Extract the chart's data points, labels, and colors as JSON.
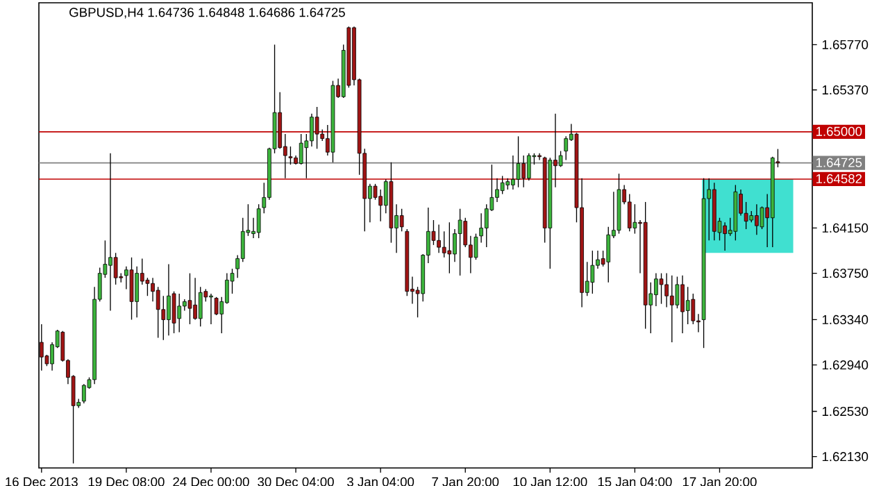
{
  "chart_data": {
    "type": "candlestick",
    "title": "GBPUSD,H4 1.64736 1.64848 1.64686 1.64725",
    "categories": [
      "16 Dec 2013",
      null,
      null,
      null,
      null,
      null,
      null,
      null,
      null,
      null,
      null,
      null,
      null,
      null,
      null,
      null,
      "19 Dec 08:00",
      null,
      null,
      null,
      null,
      null,
      null,
      null,
      null,
      null,
      null,
      null,
      null,
      null,
      null,
      null,
      "24 Dec 00:00",
      null,
      null,
      null,
      null,
      null,
      null,
      null,
      null,
      null,
      null,
      null,
      null,
      null,
      null,
      null,
      "30 Dec 04:00",
      null,
      null,
      null,
      null,
      null,
      null,
      null,
      null,
      null,
      null,
      null,
      null,
      null,
      null,
      null,
      "3 Jan 04:00",
      null,
      null,
      null,
      null,
      null,
      null,
      null,
      null,
      null,
      null,
      null,
      null,
      null,
      null,
      null,
      "7 Jan 20:00",
      null,
      null,
      null,
      null,
      null,
      null,
      null,
      null,
      null,
      null,
      null,
      null,
      null,
      null,
      null,
      "10 Jan 12:00",
      null,
      null,
      null,
      null,
      null,
      null,
      null,
      null,
      null,
      null,
      null,
      null,
      null,
      null,
      null,
      "15 Jan 04:00",
      null,
      null,
      null,
      null,
      null,
      null,
      null,
      null,
      null,
      null,
      null,
      null,
      null,
      null,
      null,
      "17 Jan 20:00",
      null,
      null,
      null,
      null,
      null,
      null,
      null,
      null,
      null,
      null,
      null,
      null,
      null,
      null,
      null,
      null,
      null
    ],
    "ohlc": [
      [
        1.6314,
        1.633,
        1.6289,
        1.6301
      ],
      [
        1.6302,
        1.6303,
        1.6293,
        1.6295
      ],
      [
        1.6295,
        1.6314,
        1.6289,
        1.6312
      ],
      [
        1.631,
        1.6325,
        1.6309,
        1.6324
      ],
      [
        1.6323,
        1.6324,
        1.6297,
        1.6298
      ],
      [
        1.6298,
        1.6299,
        1.6277,
        1.6283
      ],
      [
        1.6284,
        1.6285,
        1.6207,
        1.6258
      ],
      [
        1.6258,
        1.6264,
        1.6256,
        1.6261
      ],
      [
        1.6262,
        1.6277,
        1.626,
        1.6276
      ],
      [
        1.6274,
        1.6283,
        1.6273,
        1.6281
      ],
      [
        1.6281,
        1.6363,
        1.6277,
        1.6352
      ],
      [
        1.6352,
        1.638,
        1.635,
        1.6375
      ],
      [
        1.6374,
        1.6404,
        1.6371,
        1.6383
      ],
      [
        1.6382,
        1.6481,
        1.6342,
        1.6389
      ],
      [
        1.6389,
        1.6393,
        1.6365,
        1.6371
      ],
      [
        1.6372,
        1.6375,
        1.6367,
        1.6371
      ],
      [
        1.6373,
        1.6381,
        1.6361,
        1.6378
      ],
      [
        1.6378,
        1.6389,
        1.6334,
        1.635
      ],
      [
        1.635,
        1.6381,
        1.6336,
        1.6375
      ],
      [
        1.6375,
        1.6388,
        1.6365,
        1.6368
      ],
      [
        1.6369,
        1.6371,
        1.6355,
        1.6366
      ],
      [
        1.6366,
        1.6371,
        1.635,
        1.6359
      ],
      [
        1.636,
        1.6363,
        1.6318,
        1.6343
      ],
      [
        1.6343,
        1.6355,
        1.6316,
        1.6334
      ],
      [
        1.6334,
        1.6383,
        1.632,
        1.6355
      ],
      [
        1.6357,
        1.6359,
        1.6322,
        1.6331
      ],
      [
        1.6335,
        1.6357,
        1.6323,
        1.6346
      ],
      [
        1.6346,
        1.6352,
        1.6342,
        1.635
      ],
      [
        1.6351,
        1.6375,
        1.633,
        1.6344
      ],
      [
        1.6347,
        1.6371,
        1.6334,
        1.6335
      ],
      [
        1.6335,
        1.6363,
        1.6328,
        1.6358
      ],
      [
        1.6359,
        1.6361,
        1.635,
        1.6354
      ],
      [
        1.6354,
        1.6357,
        1.633,
        1.6355
      ],
      [
        1.6353,
        1.6354,
        1.6338,
        1.6339
      ],
      [
        1.6339,
        1.6354,
        1.6322,
        1.635
      ],
      [
        1.6349,
        1.6375,
        1.6348,
        1.6369
      ],
      [
        1.6368,
        1.6379,
        1.6357,
        1.6375
      ],
      [
        1.6379,
        1.6391,
        1.6371,
        1.6388
      ],
      [
        1.6388,
        1.6424,
        1.6385,
        1.6412
      ],
      [
        1.6411,
        1.6436,
        1.6408,
        1.6413
      ],
      [
        1.641,
        1.6424,
        1.6406,
        1.6412
      ],
      [
        1.6411,
        1.6436,
        1.6406,
        1.6432
      ],
      [
        1.6433,
        1.6455,
        1.6428,
        1.6442
      ],
      [
        1.6442,
        1.6486,
        1.644,
        1.6485
      ],
      [
        1.6485,
        1.6577,
        1.6481,
        1.6517
      ],
      [
        1.6517,
        1.6535,
        1.6485,
        1.6486
      ],
      [
        1.6487,
        1.6498,
        1.6459,
        1.6479
      ],
      [
        1.6478,
        1.6487,
        1.6471,
        1.6477
      ],
      [
        1.6477,
        1.6479,
        1.6471,
        1.6472
      ],
      [
        1.6472,
        1.6498,
        1.6471,
        1.649
      ],
      [
        1.6486,
        1.6498,
        1.6459,
        1.6492
      ],
      [
        1.6492,
        1.6516,
        1.6487,
        1.6513
      ],
      [
        1.6513,
        1.6522,
        1.6485,
        1.6498
      ],
      [
        1.6498,
        1.6502,
        1.6492,
        1.6494
      ],
      [
        1.6494,
        1.6506,
        1.6479,
        1.6482
      ],
      [
        1.6482,
        1.6545,
        1.6473,
        1.6541
      ],
      [
        1.6541,
        1.6547,
        1.653,
        1.6531
      ],
      [
        1.6531,
        1.6577,
        1.653,
        1.6572
      ],
      [
        1.6592,
        1.6593,
        1.6539,
        1.6541
      ],
      [
        1.6592,
        1.6593,
        1.6541,
        1.6546
      ],
      [
        1.6546,
        1.6547,
        1.6462,
        1.6481
      ],
      [
        1.6481,
        1.6485,
        1.6412,
        1.6441
      ],
      [
        1.6441,
        1.6454,
        1.642,
        1.6452
      ],
      [
        1.6452,
        1.6454,
        1.644,
        1.6442
      ],
      [
        1.6443,
        1.6449,
        1.6421,
        1.6435
      ],
      [
        1.6435,
        1.6458,
        1.6428,
        1.6456
      ],
      [
        1.6456,
        1.6473,
        1.6402,
        1.6415
      ],
      [
        1.6415,
        1.6436,
        1.6393,
        1.6426
      ],
      [
        1.6426,
        1.6432,
        1.6412,
        1.6416
      ],
      [
        1.6412,
        1.6414,
        1.6355,
        1.6359
      ],
      [
        1.6361,
        1.6372,
        1.6348,
        1.6359
      ],
      [
        1.636,
        1.6363,
        1.6336,
        1.6357
      ],
      [
        1.6357,
        1.6392,
        1.635,
        1.6391
      ],
      [
        1.6391,
        1.6433,
        1.6384,
        1.6412
      ],
      [
        1.6412,
        1.6422,
        1.64,
        1.6404
      ],
      [
        1.6404,
        1.6418,
        1.6393,
        1.6398
      ],
      [
        1.6398,
        1.6412,
        1.6389,
        1.6393
      ],
      [
        1.6395,
        1.642,
        1.6375,
        1.6392
      ],
      [
        1.6392,
        1.6414,
        1.6385,
        1.641
      ],
      [
        1.641,
        1.6432,
        1.6373,
        1.6422
      ],
      [
        1.6421,
        1.6424,
        1.6398,
        1.64
      ],
      [
        1.64,
        1.6408,
        1.6375,
        1.6389
      ],
      [
        1.6389,
        1.641,
        1.6387,
        1.6407
      ],
      [
        1.6408,
        1.6428,
        1.6402,
        1.6415
      ],
      [
        1.6415,
        1.6436,
        1.6398,
        1.6432
      ],
      [
        1.6431,
        1.6471,
        1.643,
        1.6442
      ],
      [
        1.6442,
        1.6459,
        1.6438,
        1.6449
      ],
      [
        1.6448,
        1.6461,
        1.6445,
        1.6455
      ],
      [
        1.6453,
        1.6459,
        1.6449,
        1.6456
      ],
      [
        1.6453,
        1.6479,
        1.6449,
        1.6458
      ],
      [
        1.6458,
        1.6496,
        1.6451,
        1.6472
      ],
      [
        1.6472,
        1.6479,
        1.6451,
        1.6459
      ],
      [
        1.6459,
        1.6481,
        1.6457,
        1.6479
      ],
      [
        1.6478,
        1.6481,
        1.6471,
        1.6479
      ],
      [
        1.6479,
        1.6481,
        1.6475,
        1.6478
      ],
      [
        1.6477,
        1.6478,
        1.6402,
        1.6415
      ],
      [
        1.6415,
        1.6477,
        1.6379,
        1.6475
      ],
      [
        1.6475,
        1.6516,
        1.6451,
        1.647
      ],
      [
        1.647,
        1.6483,
        1.6469,
        1.6479
      ],
      [
        1.6483,
        1.6496,
        1.6475,
        1.6494
      ],
      [
        1.6493,
        1.6507,
        1.6492,
        1.6498
      ],
      [
        1.6498,
        1.6499,
        1.642,
        1.6433
      ],
      [
        1.6433,
        1.6459,
        1.6345,
        1.6358
      ],
      [
        1.6358,
        1.6385,
        1.6355,
        1.6368
      ],
      [
        1.6367,
        1.6395,
        1.6357,
        1.6382
      ],
      [
        1.6382,
        1.6395,
        1.6379,
        1.6387
      ],
      [
        1.6388,
        1.6395,
        1.6381,
        1.6383
      ],
      [
        1.6385,
        1.6416,
        1.6367,
        1.6409
      ],
      [
        1.6408,
        1.6447,
        1.6406,
        1.6413
      ],
      [
        1.6413,
        1.6463,
        1.641,
        1.6449
      ],
      [
        1.6449,
        1.6453,
        1.6436,
        1.6438
      ],
      [
        1.6438,
        1.6445,
        1.6412,
        1.6415
      ],
      [
        1.6415,
        1.6436,
        1.641,
        1.642
      ],
      [
        1.642,
        1.6422,
        1.6375,
        1.6419
      ],
      [
        1.642,
        1.6438,
        1.6326,
        1.6347
      ],
      [
        1.6347,
        1.6367,
        1.6322,
        1.6357
      ],
      [
        1.6356,
        1.6375,
        1.6346,
        1.637
      ],
      [
        1.637,
        1.6375,
        1.6348,
        1.6365
      ],
      [
        1.6365,
        1.6375,
        1.6345,
        1.6355
      ],
      [
        1.6355,
        1.6373,
        1.6314,
        1.6347
      ],
      [
        1.6347,
        1.6372,
        1.6344,
        1.6365
      ],
      [
        1.6365,
        1.6373,
        1.6322,
        1.6341
      ],
      [
        1.6342,
        1.6363,
        1.633,
        1.6351
      ],
      [
        1.6352,
        1.6357,
        1.633,
        1.6333
      ],
      [
        1.6333,
        1.6339,
        1.6323,
        1.6332
      ],
      [
        1.6334,
        1.6459,
        1.6309,
        1.6441
      ],
      [
        1.6441,
        1.6459,
        1.6404,
        1.6449
      ],
      [
        1.6449,
        1.6455,
        1.6404,
        1.6412
      ],
      [
        1.6411,
        1.6424,
        1.6404,
        1.6421
      ],
      [
        1.6417,
        1.642,
        1.6395,
        1.641
      ],
      [
        1.641,
        1.6424,
        1.6408,
        1.6413
      ],
      [
        1.6412,
        1.6453,
        1.6404,
        1.6447
      ],
      [
        1.6445,
        1.6449,
        1.6426,
        1.6428
      ],
      [
        1.6428,
        1.6438,
        1.6414,
        1.6421
      ],
      [
        1.6422,
        1.643,
        1.642,
        1.6426
      ],
      [
        1.6426,
        1.6436,
        1.6409,
        1.6417
      ],
      [
        1.6416,
        1.6434,
        1.6414,
        1.6433
      ],
      [
        1.6433,
        1.6445,
        1.6398,
        1.6424
      ],
      [
        1.6424,
        1.6478,
        1.6398,
        1.6477
      ],
      [
        1.64736,
        1.64848,
        1.64686,
        1.64725
      ],
      null,
      null,
      null,
      null,
      null,
      null
    ],
    "colors": [
      "#a01414",
      "#a01414",
      "#3cb43c",
      "#3cb43c",
      "#a01414",
      "#a01414",
      "#a01414",
      "#3cb43c",
      "#3cb43c",
      "#3cb43c",
      "#3cb43c",
      "#3cb43c",
      "#3cb43c",
      "#3cb43c",
      "#a01414",
      "#a01414",
      "#3cb43c",
      "#a01414",
      "#3cb43c",
      "#a01414",
      "#a01414",
      "#a01414",
      "#a01414",
      "#a01414",
      "#3cb43c",
      "#a01414",
      "#3cb43c",
      "#3cb43c",
      "#a01414",
      "#a01414",
      "#3cb43c",
      "#a01414",
      "#3cb43c",
      "#a01414",
      "#3cb43c",
      "#3cb43c",
      "#3cb43c",
      "#3cb43c",
      "#3cb43c",
      "#3cb43c",
      "#3cb43c",
      "#3cb43c",
      "#3cb43c",
      "#3cb43c",
      "#3cb43c",
      "#a01414",
      "#a01414",
      "#a01414",
      "#a01414",
      "#3cb43c",
      "#3cb43c",
      "#3cb43c",
      "#a01414",
      "#a01414",
      "#a01414",
      "#3cb43c",
      "#a01414",
      "#3cb43c",
      "#a01414",
      "#a01414",
      "#a01414",
      "#a01414",
      "#3cb43c",
      "#a01414",
      "#a01414",
      "#3cb43c",
      "#a01414",
      "#3cb43c",
      "#a01414",
      "#a01414",
      "#a01414",
      "#a01414",
      "#3cb43c",
      "#3cb43c",
      "#a01414",
      "#a01414",
      "#a01414",
      "#a01414",
      "#3cb43c",
      "#3cb43c",
      "#a01414",
      "#a01414",
      "#3cb43c",
      "#3cb43c",
      "#3cb43c",
      "#3cb43c",
      "#3cb43c",
      "#3cb43c",
      "#3cb43c",
      "#3cb43c",
      "#3cb43c",
      "#a01414",
      "#3cb43c",
      "#3cb43c",
      "#a01414",
      "#a01414",
      "#3cb43c",
      "#a01414",
      "#3cb43c",
      "#3cb43c",
      "#3cb43c",
      "#a01414",
      "#a01414",
      "#3cb43c",
      "#3cb43c",
      "#3cb43c",
      "#a01414",
      "#3cb43c",
      "#3cb43c",
      "#3cb43c",
      "#a01414",
      "#a01414",
      "#3cb43c",
      "#a01414",
      "#a01414",
      "#3cb43c",
      "#3cb43c",
      "#a01414",
      "#a01414",
      "#a01414",
      "#3cb43c",
      "#a01414",
      "#3cb43c",
      "#a01414",
      "#a01414",
      "#3cb43c",
      "#3cb43c",
      "#a01414",
      "#3cb43c",
      "#a01414",
      "#3cb43c",
      "#3cb43c",
      "#a01414",
      "#a01414",
      "#3cb43c",
      "#a01414",
      "#3cb43c",
      "#a01414",
      "#3cb43c",
      "#a01414",
      null,
      null,
      null,
      null,
      null,
      null
    ],
    "ylim": [
      1.6203,
      1.6614
    ],
    "yticks": [
      {
        "value": 1.6213,
        "label": "1.62130"
      },
      {
        "value": 1.6253,
        "label": "1.62530"
      },
      {
        "value": 1.6294,
        "label": "1.62940"
      },
      {
        "value": 1.6334,
        "label": "1.63340"
      },
      {
        "value": 1.6375,
        "label": "1.63750"
      },
      {
        "value": 1.6415,
        "label": "1.64150"
      },
      {
        "value": 1.6537,
        "label": "1.65370"
      },
      {
        "value": 1.6577,
        "label": "1.65770"
      }
    ],
    "ref_lines": [
      {
        "axis": "y",
        "value": 1.65,
        "label": "1.65000",
        "color": "#c00000"
      },
      {
        "axis": "y",
        "value": 1.64725,
        "label": "1.64725",
        "color": "#808080"
      },
      {
        "axis": "y",
        "value": 1.64582,
        "label": "1.64582",
        "color": "#c00000"
      }
    ],
    "bands": [
      {
        "axis": "y",
        "from": 1.6393,
        "to": 1.64582,
        "color": "#40e0d0"
      }
    ]
  }
}
